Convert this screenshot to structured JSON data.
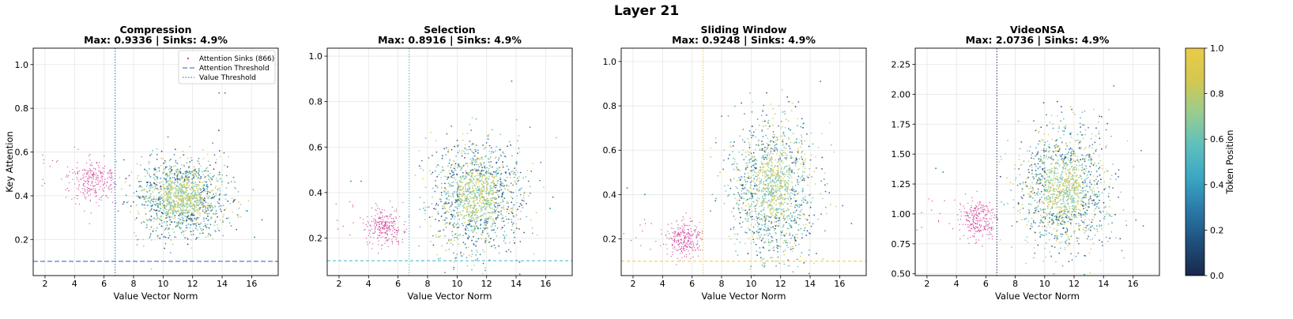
{
  "suptitle": "Layer 21",
  "colorbar": {
    "label": "Token Position",
    "ticks": [
      "0.0",
      "0.2",
      "0.4",
      "0.6",
      "0.8",
      "1.0"
    ],
    "colormap": [
      "#19284a",
      "#1f4e7c",
      "#2b78a6",
      "#3aa6c2",
      "#5ebfbe",
      "#98cc90",
      "#d3c850",
      "#e9cc46"
    ]
  },
  "colors": {
    "sink": "#d44fa3",
    "attention_threshold": "#4f7fc0",
    "compression_vline": "#4f7fc0",
    "selection_line": "#60c6d4",
    "sliding_line": "#f3d45a",
    "videonsa_vline": "#3a4f7a"
  },
  "legend": {
    "placement": "upper-right of first panel",
    "entries": [
      "Attention Sinks (866)",
      "Attention Threshold",
      "Value Threshold"
    ]
  },
  "chart_data": [
    {
      "type": "scatter",
      "title": "Compression",
      "subtitle": "Max: 0.9336 | Sinks: 4.9%",
      "xlabel": "Value Vector Norm",
      "ylabel": "Key Attention",
      "xlim": [
        1.2,
        17.8
      ],
      "ylim": [
        0.035,
        1.075
      ],
      "xticks": [
        "2",
        "4",
        "6",
        "8",
        "10",
        "12",
        "14",
        "16"
      ],
      "yticks": [
        "0.2",
        "0.4",
        "0.6",
        "0.8",
        "1.0"
      ],
      "grid": true,
      "value_threshold": 6.75,
      "attention_threshold": 0.1,
      "sinks": {
        "x_center": 5.3,
        "x_spread": 0.9,
        "y_center": 0.47,
        "y_spread": 0.045
      },
      "tokens": {
        "x_center": 11.3,
        "x_spread": 1.5,
        "y_center": 0.39,
        "y_spread": 0.09,
        "x_min": 6.75
      },
      "outliers": [
        [
          16.7,
          0.29
        ],
        [
          16.2,
          0.21
        ],
        [
          13.8,
          0.87
        ],
        [
          14.2,
          0.87
        ],
        [
          15.7,
          0.33
        ]
      ]
    },
    {
      "type": "scatter",
      "title": "Selection",
      "subtitle": "Max: 0.8916 | Sinks: 4.9%",
      "xlabel": "Value Vector Norm",
      "ylabel": "",
      "xlim": [
        1.2,
        17.8
      ],
      "ylim": [
        0.035,
        1.035
      ],
      "xticks": [
        "2",
        "4",
        "6",
        "8",
        "10",
        "12",
        "14",
        "16"
      ],
      "yticks": [
        "0.2",
        "0.4",
        "0.6",
        "0.8",
        "1.0"
      ],
      "grid": true,
      "value_threshold": 6.75,
      "attention_threshold": 0.1,
      "sinks": {
        "x_center": 5.1,
        "x_spread": 0.75,
        "y_center": 0.25,
        "y_spread": 0.04
      },
      "tokens": {
        "x_center": 11.3,
        "x_spread": 1.5,
        "y_center": 0.38,
        "y_spread": 0.12,
        "x_min": 6.75
      },
      "outliers": [
        [
          13.7,
          0.89
        ],
        [
          16.5,
          0.38
        ],
        [
          16.3,
          0.33
        ],
        [
          2.8,
          0.45
        ],
        [
          3.5,
          0.45
        ]
      ]
    },
    {
      "type": "scatter",
      "title": "Sliding Window",
      "subtitle": "Max: 0.9248 | Sinks: 4.9%",
      "xlabel": "Value Vector Norm",
      "ylabel": "",
      "xlim": [
        1.2,
        17.8
      ],
      "ylim": [
        0.035,
        1.06
      ],
      "xticks": [
        "2",
        "4",
        "6",
        "8",
        "10",
        "12",
        "14",
        "16"
      ],
      "yticks": [
        "0.2",
        "0.4",
        "0.6",
        "0.8",
        "1.0"
      ],
      "grid": true,
      "value_threshold": 6.75,
      "attention_threshold": 0.1,
      "sinks": {
        "x_center": 5.5,
        "x_spread": 0.7,
        "y_center": 0.2,
        "y_spread": 0.04
      },
      "tokens": {
        "x_center": 11.5,
        "x_spread": 1.4,
        "y_center": 0.43,
        "y_spread": 0.16,
        "x_min": 6.75
      },
      "outliers": [
        [
          14.7,
          0.91
        ],
        [
          16.8,
          0.27
        ],
        [
          16.2,
          0.35
        ],
        [
          2.8,
          0.4
        ],
        [
          1.6,
          0.43
        ]
      ]
    },
    {
      "type": "scatter",
      "title": "VideoNSA",
      "subtitle": "Max: 2.0736 | Sinks: 4.9%",
      "xlabel": "Value Vector Norm",
      "ylabel": "",
      "xlim": [
        1.2,
        17.8
      ],
      "ylim": [
        0.485,
        2.385
      ],
      "xticks": [
        "2",
        "4",
        "6",
        "8",
        "10",
        "12",
        "14",
        "16"
      ],
      "yticks": [
        "0.50",
        "0.75",
        "1.00",
        "1.25",
        "1.50",
        "1.75",
        "2.00",
        "2.25"
      ],
      "grid": true,
      "value_threshold": 6.75,
      "attention_threshold": null,
      "sinks": {
        "x_center": 5.4,
        "x_spread": 0.7,
        "y_center": 0.95,
        "y_spread": 0.08
      },
      "tokens": {
        "x_center": 11.3,
        "x_spread": 1.5,
        "y_center": 1.22,
        "y_spread": 0.25,
        "x_min": 6.75
      },
      "outliers": [
        [
          14.7,
          2.07
        ],
        [
          16.7,
          0.9
        ],
        [
          16.2,
          0.95
        ],
        [
          2.6,
          1.38
        ],
        [
          3.1,
          1.35
        ]
      ]
    }
  ]
}
